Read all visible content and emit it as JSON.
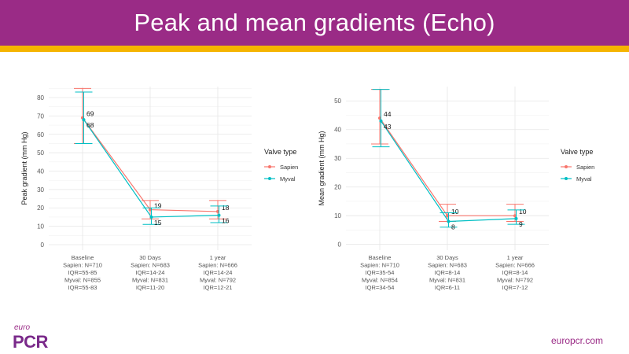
{
  "header": {
    "title": "Peak and mean gradients (Echo)"
  },
  "footer": {
    "logo_small": "euro",
    "logo_big": "PCR",
    "url": "europcr.com"
  },
  "colors": {
    "sapien": "#f8766d",
    "myval": "#00bfc4",
    "brand": "#9a2b86",
    "stripe": "#f5b400"
  },
  "chart_data": [
    {
      "type": "line",
      "ylabel": "Peak gradient (mm Hg)",
      "ylim": [
        -3,
        86
      ],
      "yticks": [
        0,
        10,
        20,
        30,
        40,
        50,
        60,
        70,
        80
      ],
      "categories": [
        "Baseline",
        "30 Days",
        "1 year"
      ],
      "category_labels": [
        [
          "Baseline",
          "Sapien: N=710",
          "IQR=55-85",
          "Myval: N=855",
          "IQR=55-83"
        ],
        [
          "30 Days",
          "Sapien: N=683",
          "IQR=14-24",
          "Myval: N=831",
          "IQR=11-20"
        ],
        [
          "1 year",
          "Sapien: N=666",
          "IQR=14-24",
          "Myval: N=792",
          "IQR=12-21"
        ]
      ],
      "legend_title": "Valve type",
      "legend_position": "right",
      "series": [
        {
          "name": "Sapien",
          "values": [
            69,
            19,
            18
          ],
          "lower": [
            55,
            14,
            14
          ],
          "upper": [
            85,
            24,
            24
          ],
          "labels": [
            "69",
            "19",
            "18"
          ]
        },
        {
          "name": "Myval",
          "values": [
            68,
            15,
            16
          ],
          "lower": [
            55,
            11,
            12
          ],
          "upper": [
            83,
            20,
            21
          ],
          "labels": [
            "68",
            "15",
            "16"
          ]
        }
      ]
    },
    {
      "type": "line",
      "ylabel": "Mean gradient (mm Hg)",
      "ylim": [
        -2,
        55
      ],
      "yticks": [
        0,
        10,
        20,
        30,
        40,
        50
      ],
      "categories": [
        "Baseline",
        "30 Days",
        "1 year"
      ],
      "category_labels": [
        [
          "Baseline",
          "Sapien: N=710",
          "IQR=35-54",
          "Myval: N=854",
          "IQR=34-54"
        ],
        [
          "30 Days",
          "Sapien: N=683",
          "IQR=8-14",
          "Myval: N=831",
          "IQR=6-11"
        ],
        [
          "1 year",
          "Sapien: N=666",
          "IQR=8-14",
          "Myval: N=792",
          "IQR=7-12"
        ]
      ],
      "legend_title": "Valve type",
      "legend_position": "right",
      "series": [
        {
          "name": "Sapien",
          "values": [
            44,
            10,
            10
          ],
          "lower": [
            35,
            8,
            8
          ],
          "upper": [
            54,
            14,
            14
          ],
          "labels": [
            "44",
            "10",
            "10"
          ]
        },
        {
          "name": "Myval",
          "values": [
            43,
            8,
            9
          ],
          "lower": [
            34,
            6,
            7
          ],
          "upper": [
            54,
            11,
            12
          ],
          "labels": [
            "43",
            "8",
            "9"
          ]
        }
      ]
    }
  ]
}
